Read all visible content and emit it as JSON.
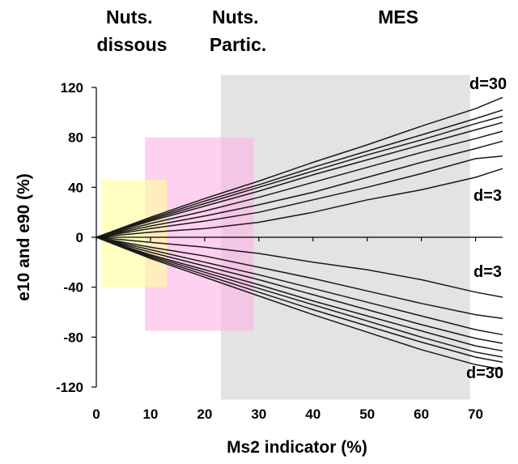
{
  "chart_data": {
    "type": "line",
    "title": "",
    "xlabel": "Ms2 indicator (%)",
    "ylabel": "e10 and e90 (%)",
    "xlim": [
      0,
      75
    ],
    "ylim": [
      -120,
      120
    ],
    "xticks": [
      0,
      10,
      20,
      30,
      40,
      50,
      60,
      70
    ],
    "yticks": [
      -120,
      -80,
      -40,
      0,
      40,
      80,
      120
    ],
    "grid": false,
    "zones": [
      {
        "label": "Nuts.\ndissous",
        "x": [
          1,
          13
        ],
        "y": [
          -40,
          46
        ],
        "color": "#ffff99"
      },
      {
        "label": "Nuts.\nPartic.",
        "x": [
          9,
          29
        ],
        "y": [
          -75,
          80
        ],
        "color": "#ffb3e6"
      },
      {
        "label": "MES",
        "x": [
          23,
          69
        ],
        "y": [
          -130,
          130
        ],
        "color": "#d9d9d9"
      }
    ],
    "series_labels": {
      "upper_top": "d=30",
      "upper_bottom": "d=3",
      "lower_top": "d=3",
      "lower_bottom": "d=30"
    },
    "x": [
      0,
      10,
      20,
      30,
      40,
      50,
      60,
      70,
      75
    ],
    "series": [
      {
        "values": [
          0,
          4,
          7,
          12,
          20,
          30,
          38,
          48,
          55
        ]
      },
      {
        "values": [
          0,
          7,
          13,
          20,
          30,
          40,
          51,
          63,
          65
        ]
      },
      {
        "values": [
          0,
          9,
          17,
          26,
          36,
          48,
          60,
          71,
          77
        ]
      },
      {
        "values": [
          0,
          11,
          21,
          32,
          44,
          56,
          68,
          79,
          85
        ]
      },
      {
        "values": [
          0,
          13,
          25,
          37,
          50,
          62,
          74,
          86,
          92
        ]
      },
      {
        "values": [
          0,
          14,
          27,
          40,
          53,
          66,
          78,
          91,
          97
        ]
      },
      {
        "values": [
          0,
          15,
          29,
          42,
          56,
          69,
          82,
          95,
          102
        ]
      },
      {
        "values": [
          0,
          16,
          31,
          45,
          60,
          74,
          89,
          103,
          112
        ]
      },
      {
        "values": [
          0,
          -4,
          -8,
          -13,
          -20,
          -26,
          -34,
          -44,
          -48
        ]
      },
      {
        "values": [
          0,
          -8,
          -15,
          -24,
          -33,
          -43,
          -53,
          -62,
          -65
        ]
      },
      {
        "values": [
          0,
          -10,
          -20,
          -30,
          -41,
          -52,
          -63,
          -74,
          -78
        ]
      },
      {
        "values": [
          0,
          -12,
          -23,
          -34,
          -46,
          -58,
          -70,
          -81,
          -85
        ]
      },
      {
        "values": [
          0,
          -14,
          -26,
          -38,
          -51,
          -63,
          -75,
          -87,
          -91
        ]
      },
      {
        "values": [
          0,
          -15,
          -28,
          -41,
          -54,
          -67,
          -80,
          -92,
          -96
        ]
      },
      {
        "values": [
          0,
          -16,
          -30,
          -44,
          -58,
          -71,
          -84,
          -96,
          -100
        ]
      },
      {
        "values": [
          0,
          -17,
          -32,
          -47,
          -62,
          -76,
          -90,
          -102,
          -106
        ]
      }
    ]
  }
}
